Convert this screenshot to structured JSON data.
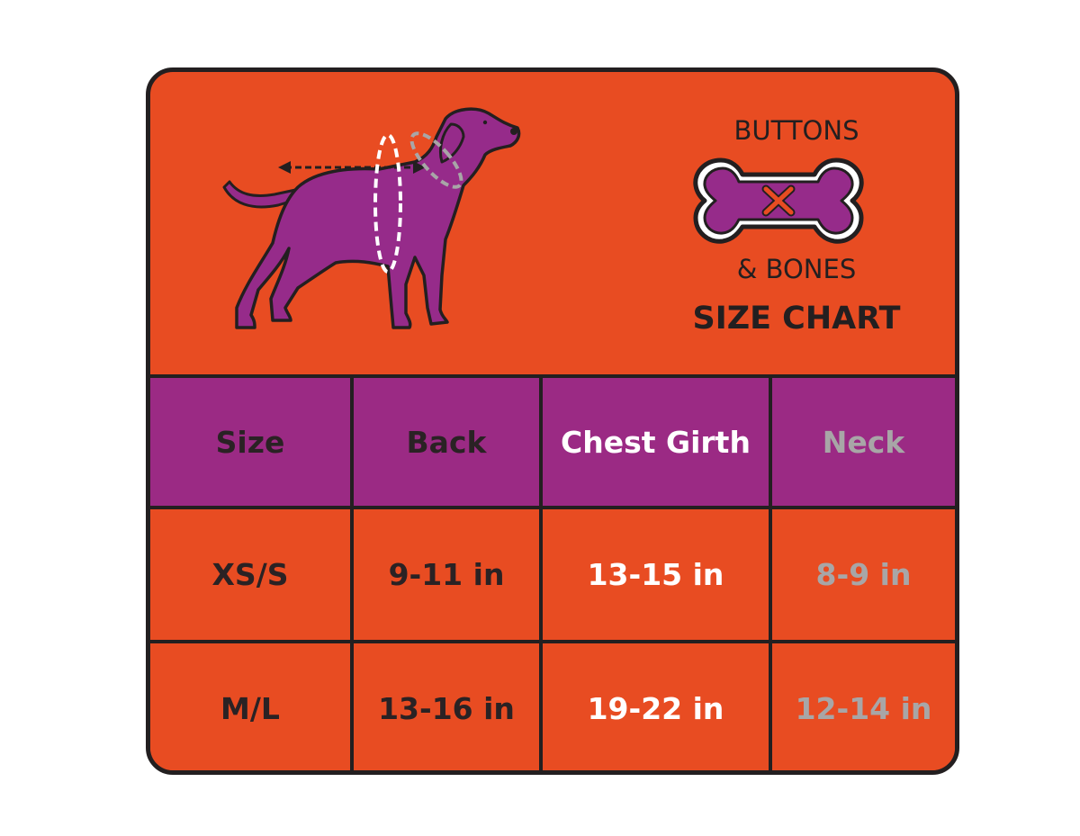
{
  "brand": {
    "name_top": "BUTTONS",
    "name_bottom": "& BONES",
    "chart_title": "SIZE CHART"
  },
  "illustration": {
    "icon": "dog-measurement-icon",
    "logo_icon": "bone-logo-icon"
  },
  "colors": {
    "background_orange": "#e84c22",
    "header_purple": "#9b2a84",
    "dog_purple": "#962b8a",
    "outline_dark": "#231f20",
    "neck_gray": "#a8a6a7"
  },
  "table": {
    "headers": [
      "Size",
      "Back",
      "Chest Girth",
      "Neck"
    ],
    "rows": [
      [
        "XS/S",
        "9-11 in",
        "13-15 in",
        "8-9 in"
      ],
      [
        "M/L",
        "13-16 in",
        "19-22 in",
        "12-14 in"
      ]
    ]
  }
}
